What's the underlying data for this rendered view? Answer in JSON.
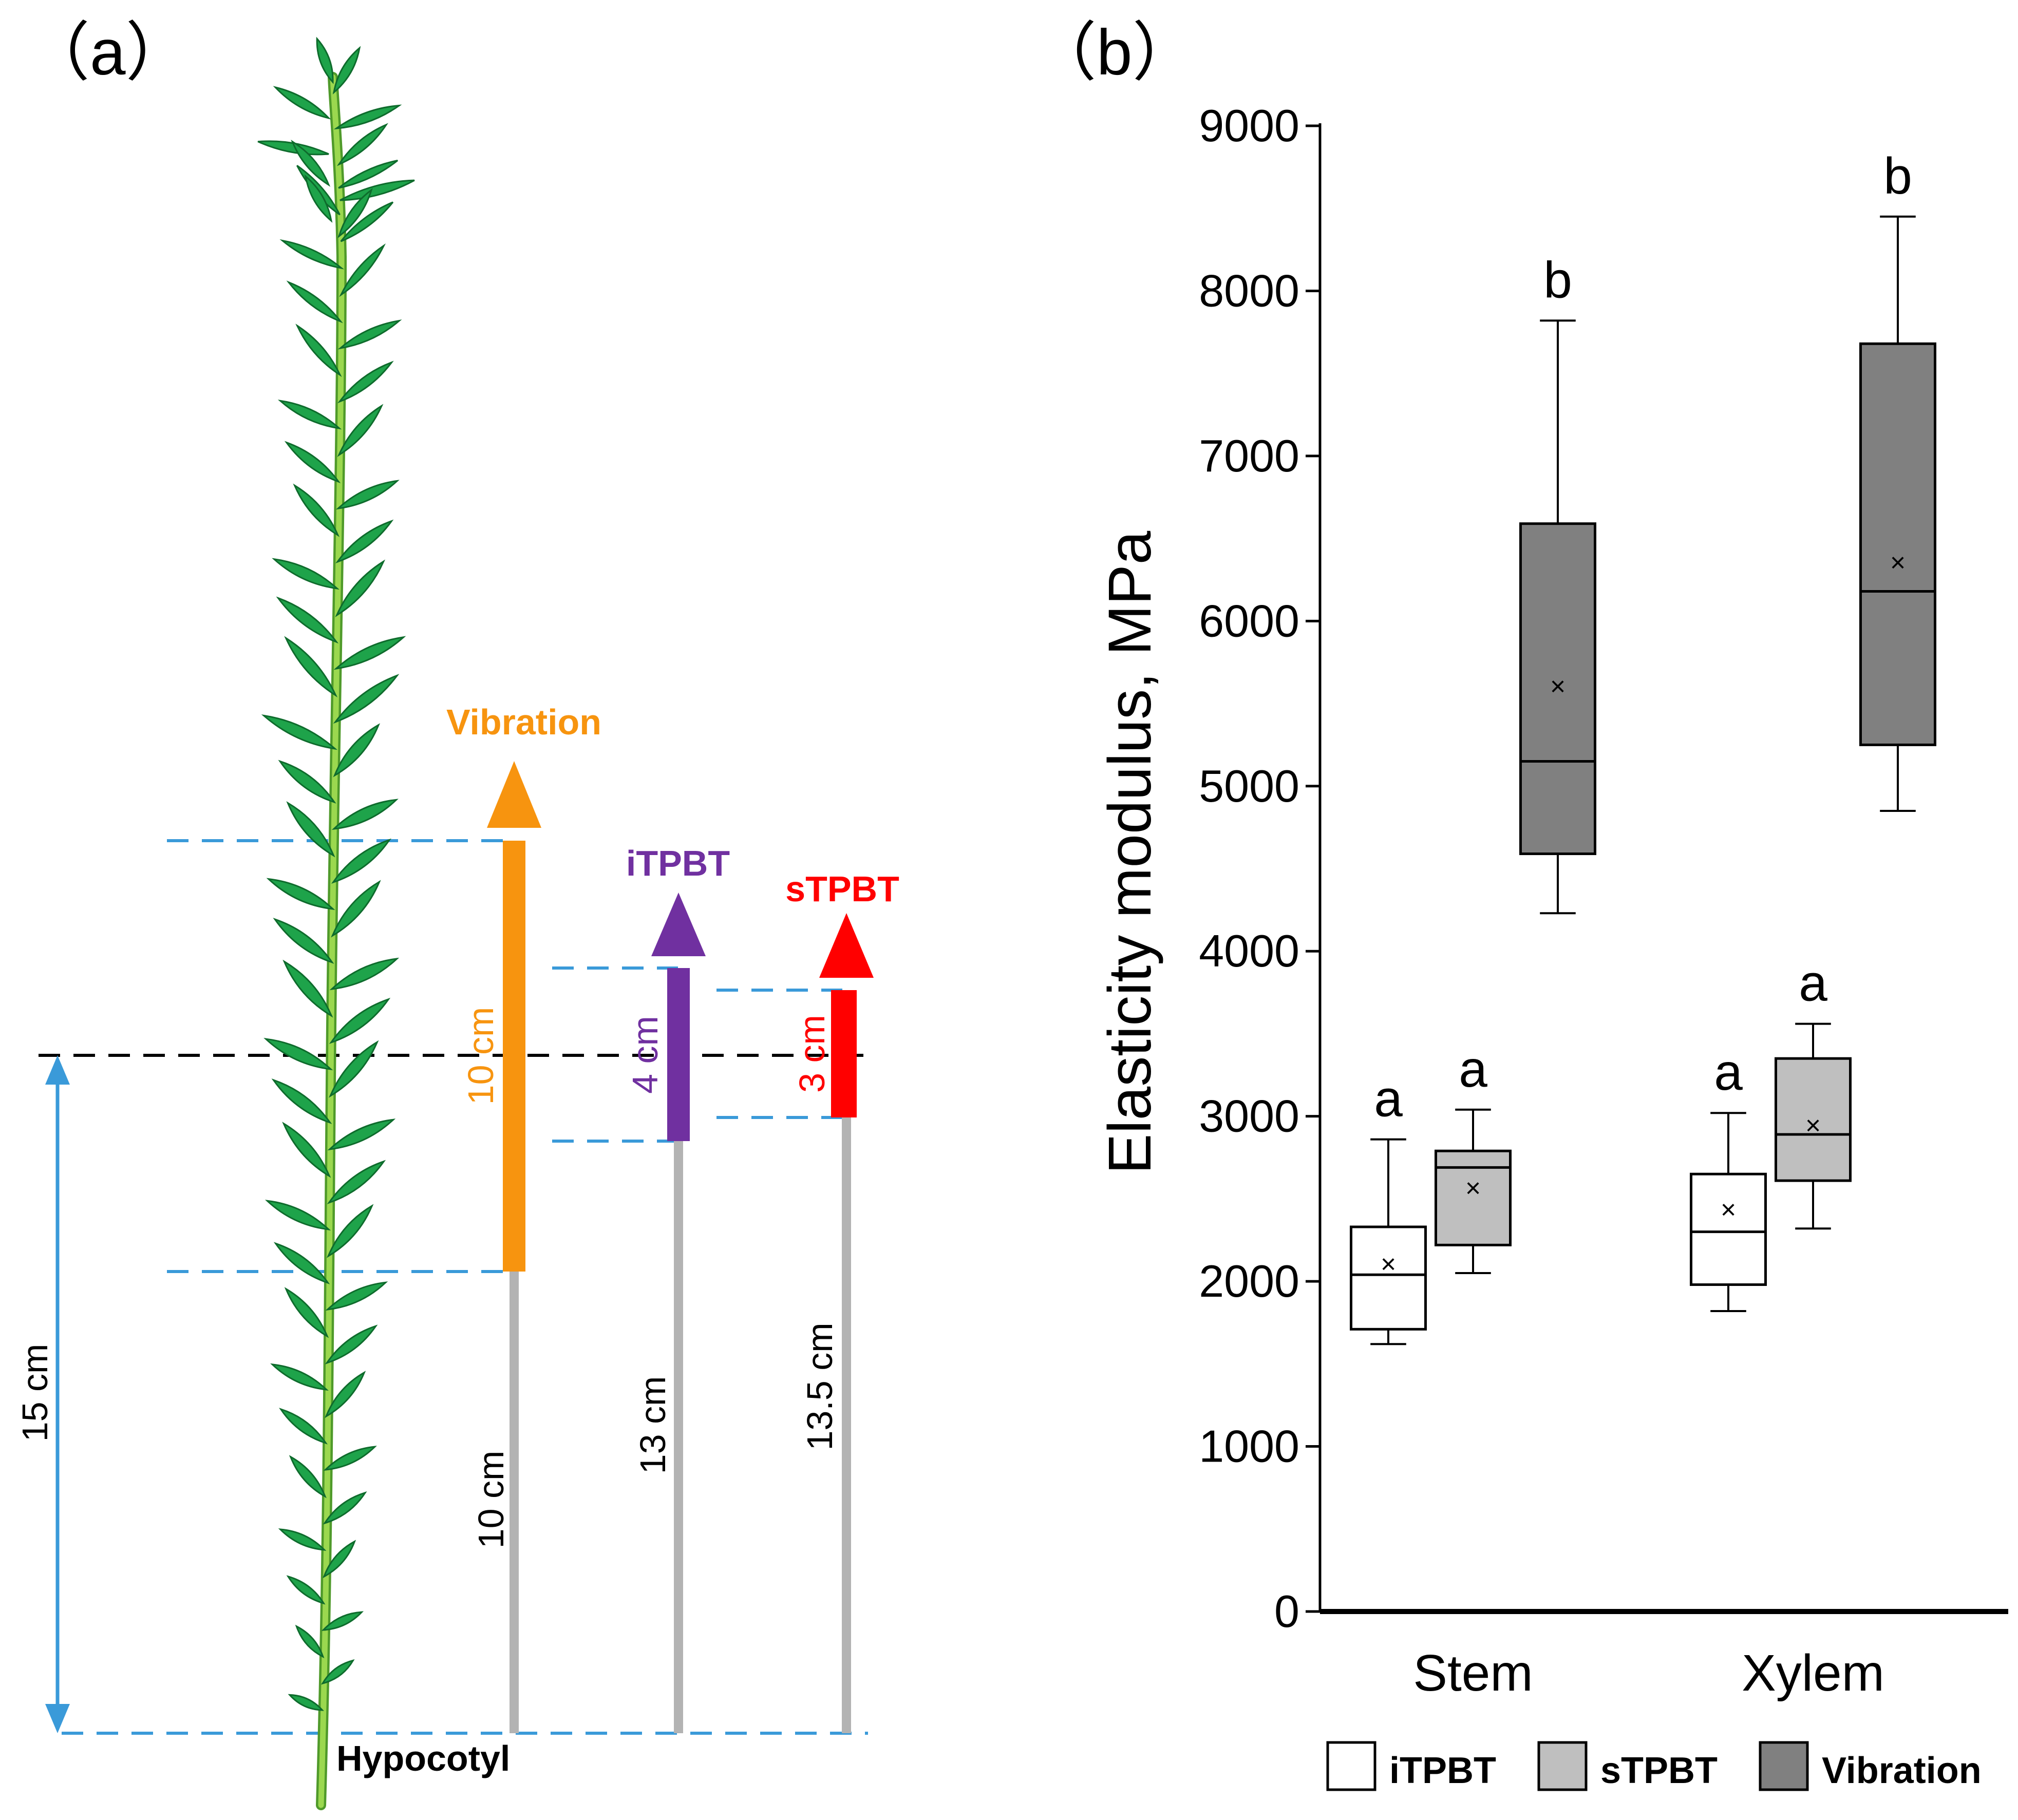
{
  "panel_a": {
    "label": "（a）",
    "total_height_label": "15 cm",
    "hypocotyl_label": "Hypocotyl",
    "treatments": [
      {
        "name": "Vibration",
        "segment_label": "10 cm",
        "base_label": "10 cm",
        "segment_cm": 10,
        "base_cm": 10,
        "color": "#f7940f"
      },
      {
        "name": "iTPBT",
        "segment_label": "4 cm",
        "base_label": "13 cm",
        "segment_cm": 4,
        "base_cm": 13,
        "color": "#7030a0"
      },
      {
        "name": "sTPBT",
        "segment_label": "3 cm",
        "base_label": "13.5 cm",
        "segment_cm": 3,
        "base_cm": 13.5,
        "color": "#ff0000"
      }
    ],
    "colors": {
      "guide_blue": "#3a9ad9",
      "rod_gray": "#b3b3b3",
      "leaf_green": "#1ea34a",
      "stem_green": "#9bd84f"
    }
  },
  "panel_b": {
    "label": "（b）"
  },
  "chart_data": {
    "type": "box",
    "title": "",
    "ylabel": "Elasticity modulus, MPa",
    "xlabel": "",
    "ylim": [
      0,
      9000
    ],
    "yticks": [
      0,
      1000,
      2000,
      3000,
      4000,
      5000,
      6000,
      7000,
      8000,
      9000
    ],
    "categories": [
      "Stem",
      "Xylem"
    ],
    "legend": [
      "iTPBT",
      "sTPBT",
      "Vibration"
    ],
    "legend_position": "bottom",
    "series": [
      {
        "name": "iTPBT",
        "color": "#ffffff",
        "boxes": [
          {
            "category": "Stem",
            "min": 1620,
            "q1": 1710,
            "median": 2040,
            "q3": 2330,
            "max": 2860,
            "mean": 2100,
            "letter": "a"
          },
          {
            "category": "Xylem",
            "min": 1820,
            "q1": 1980,
            "median": 2300,
            "q3": 2650,
            "max": 3020,
            "mean": 2430,
            "letter": "a"
          }
        ]
      },
      {
        "name": "sTPBT",
        "color": "#bfbfbf",
        "boxes": [
          {
            "category": "Stem",
            "min": 2050,
            "q1": 2220,
            "median": 2690,
            "q3": 2790,
            "max": 3040,
            "mean": 2560,
            "letter": "a"
          },
          {
            "category": "Xylem",
            "min": 2320,
            "q1": 2610,
            "median": 2890,
            "q3": 3350,
            "max": 3560,
            "mean": 2940,
            "letter": "a"
          }
        ]
      },
      {
        "name": "Vibration",
        "color": "#808080",
        "boxes": [
          {
            "category": "Stem",
            "min": 4230,
            "q1": 4590,
            "median": 5150,
            "q3": 6590,
            "max": 7820,
            "mean": 5600,
            "letter": "b"
          },
          {
            "category": "Xylem",
            "min": 4850,
            "q1": 5250,
            "median": 6180,
            "q3": 7680,
            "max": 8450,
            "mean": 6350,
            "letter": "b"
          }
        ]
      }
    ]
  }
}
